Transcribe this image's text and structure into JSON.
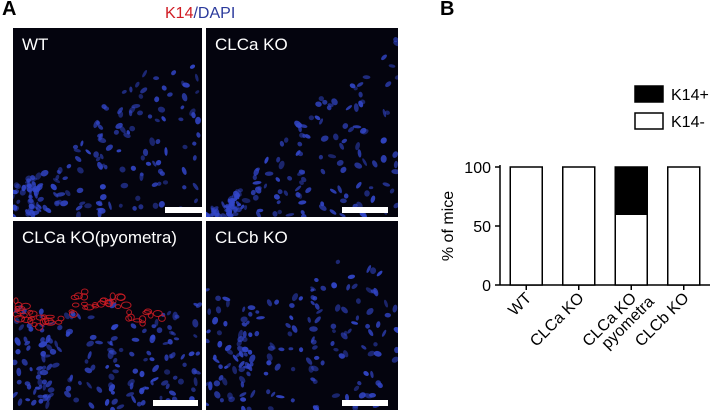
{
  "panel_a": {
    "letter": "A",
    "title_k14": "K14",
    "title_sep": "/",
    "title_dapi": "DAPI",
    "colors": {
      "k14": "#d01c24",
      "dapi": "#2b3a9c",
      "nuclei": "#3246c8",
      "background": "#04040e"
    },
    "tiles": [
      {
        "label": "WT"
      },
      {
        "label": "CLCa KO"
      },
      {
        "label": "CLCa KO(pyometra)"
      },
      {
        "label": "CLCb KO"
      }
    ]
  },
  "panel_b": {
    "letter": "B"
  },
  "chart_data": {
    "type": "bar",
    "stacked": true,
    "categories": [
      "WT",
      "CLCa KO",
      "CLCa KO pyometra",
      "CLCb KO"
    ],
    "category_lines": [
      [
        "WT"
      ],
      [
        "CLCa KO"
      ],
      [
        "CLCa KO",
        "pyometra"
      ],
      [
        "CLCb KO"
      ]
    ],
    "series": [
      {
        "name": "K14-",
        "values": [
          100,
          100,
          60,
          100
        ],
        "color": "#ffffff"
      },
      {
        "name": "K14+",
        "values": [
          0,
          0,
          40,
          0
        ],
        "color": "#000000"
      }
    ],
    "legend_order": [
      "K14+",
      "K14-"
    ],
    "legend_position": "top-right",
    "ylabel": "% of mice",
    "ylim": [
      0,
      100
    ],
    "yticks": [
      0,
      50,
      100
    ],
    "grid": false
  }
}
